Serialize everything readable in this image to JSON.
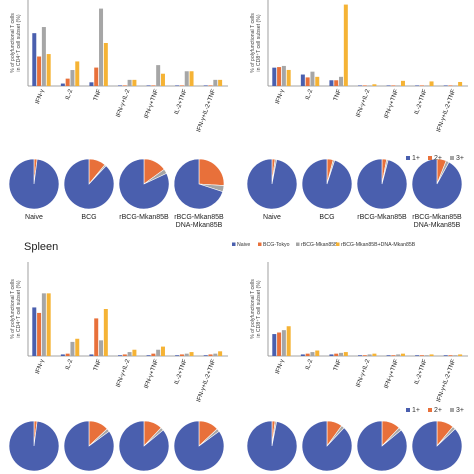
{
  "colors": {
    "naive": "#4a5fae",
    "bcg": "#e8703a",
    "rbcg": "#a6a6a6",
    "combo": "#f5b335",
    "one_plus": "#4a5fae",
    "two_plus": "#e8703a",
    "three_plus": "#a6a6a6"
  },
  "section_label": "Spleen",
  "cd4_ylabel": [
    "% of polyfunctional T cells",
    "in CD4⁺T cell subset (%)"
  ],
  "cd8_ylabel": [
    "% of polyfunctional T cells",
    "in CD8⁺T cell subset (%)"
  ],
  "group_legend": [
    "Naive",
    "BCG-Tokyo",
    "rBCG-Mkan85B",
    "rBCG-Mkan85B+DNA-Mkan85B"
  ],
  "pie_legend": [
    "1+",
    "2+",
    "3+"
  ],
  "pie_labels": [
    "Naive",
    "BCG",
    "rBCG-Mkan85B",
    "rBCG-Mkan85B\nDNA-Mkan85B"
  ],
  "chart_data": [
    {
      "type": "bar",
      "categories": [
        "IFN-γ",
        "IL-2",
        "TNF",
        "IFN-γ+IL-2",
        "IFN-γ+TNF",
        "IL-2+TNF",
        "IFN-γ+IL-2+TNF"
      ],
      "ylabel": "% of polyfunctional T cells in CD4⁺T cell subset (%)",
      "ymax": 7,
      "series": [
        {
          "name": "Naive",
          "values": [
            4.3,
            0.2,
            0.3,
            0.05,
            0.05,
            0.05,
            0.05
          ]
        },
        {
          "name": "BCG-Tokyo",
          "values": [
            2.4,
            0.6,
            1.5,
            0.05,
            0.05,
            0.05,
            0.05
          ]
        },
        {
          "name": "rBCG-Mkan85B",
          "values": [
            4.8,
            1.3,
            6.3,
            0.5,
            1.7,
            1.2,
            0.5
          ]
        },
        {
          "name": "rBCG-Mkan85B+DNA-Mkan85B",
          "values": [
            2.6,
            2.0,
            3.5,
            0.5,
            1.0,
            1.2,
            0.5
          ]
        }
      ]
    },
    {
      "type": "bar",
      "categories": [
        "IFN-γ",
        "IL-2",
        "TNF",
        "IFN-γ+IL-2",
        "IFN-γ+TNF",
        "IL-2+TNF",
        "IFN-γ+IL-2+TNF"
      ],
      "ylabel": "% of polyfunctional T cells in CD8⁺T cell subset (%)",
      "ymax": 1.5,
      "series": [
        {
          "name": "Naive",
          "values": [
            0.32,
            0.2,
            0.1,
            0.0,
            0.0,
            0.0,
            0.0
          ]
        },
        {
          "name": "BCG-Tokyo",
          "values": [
            0.33,
            0.15,
            0.1,
            0.0,
            0.0,
            0.0,
            0.0
          ]
        },
        {
          "name": "rBCG-Mkan85B",
          "values": [
            0.35,
            0.25,
            0.16,
            0.01,
            0.01,
            0.01,
            0.01
          ]
        },
        {
          "name": "rBCG-Mkan85B+DNA-Mkan85B",
          "values": [
            0.28,
            0.16,
            1.42,
            0.03,
            0.09,
            0.08,
            0.07
          ]
        }
      ]
    },
    {
      "type": "pie",
      "labels": [
        "1+",
        "2+",
        "3+"
      ],
      "groups": [
        {
          "name": "Naive",
          "values": [
            98,
            2,
            0
          ]
        },
        {
          "name": "BCG",
          "values": [
            88,
            11,
            1
          ]
        },
        {
          "name": "rBCG-Mkan85B",
          "values": [
            82,
            15,
            3
          ]
        },
        {
          "name": "rBCG-Mkan85B DNA-Mkan85B",
          "values": [
            70,
            26,
            4
          ]
        }
      ]
    },
    {
      "type": "pie",
      "labels": [
        "1+",
        "2+",
        "3+"
      ],
      "groups": [
        {
          "name": "Naive",
          "values": [
            97,
            2,
            1
          ]
        },
        {
          "name": "BCG",
          "values": [
            95,
            4,
            1
          ]
        },
        {
          "name": "rBCG-Mkan85B",
          "values": [
            96,
            3,
            1
          ]
        },
        {
          "name": "rBCG-Mkan85B DNA-Mkan85B",
          "values": [
            92,
            6,
            2
          ]
        }
      ]
    },
    {
      "type": "bar",
      "categories": [
        "IFN-γ",
        "IL-2",
        "TNF",
        "IFN-γ+IL-2",
        "IFN-γ+TNF",
        "IL-2+TNF",
        "IFN-γ+IL-2+TNF"
      ],
      "ylabel": "% of polyfunctional T cells in CD4⁺T cell subset (%)",
      "ymax": 1.2,
      "series": [
        {
          "name": "Naive",
          "values": [
            0.62,
            0.02,
            0.02,
            0.01,
            0.01,
            0.01,
            0.01
          ]
        },
        {
          "name": "BCG-Tokyo",
          "values": [
            0.55,
            0.03,
            0.48,
            0.02,
            0.03,
            0.02,
            0.02
          ]
        },
        {
          "name": "rBCG-Mkan85B",
          "values": [
            0.8,
            0.18,
            0.2,
            0.05,
            0.08,
            0.03,
            0.03
          ]
        },
        {
          "name": "rBCG-Mkan85B+DNA-Mkan85B",
          "values": [
            0.8,
            0.22,
            0.6,
            0.08,
            0.12,
            0.05,
            0.06
          ]
        }
      ]
    },
    {
      "type": "bar",
      "categories": [
        "IFN-γ",
        "IL-2",
        "TNF",
        "IFN-γ+IL-2",
        "IFN-γ+TNF",
        "IL-2+TNF",
        "IFN-γ+IL-2+TNF"
      ],
      "ylabel": "% of polyfunctional T cells in CD8⁺T cell subset (%)",
      "ymax": 1.2,
      "series": [
        {
          "name": "Naive",
          "values": [
            0.28,
            0.02,
            0.02,
            0.01,
            0.01,
            0.01,
            0.01
          ]
        },
        {
          "name": "BCG-Tokyo",
          "values": [
            0.3,
            0.03,
            0.03,
            0.01,
            0.01,
            0.01,
            0.01
          ]
        },
        {
          "name": "rBCG-Mkan85B",
          "values": [
            0.33,
            0.05,
            0.04,
            0.02,
            0.02,
            0.01,
            0.01
          ]
        },
        {
          "name": "rBCG-Mkan85B+DNA-Mkan85B",
          "values": [
            0.38,
            0.07,
            0.05,
            0.03,
            0.03,
            0.02,
            0.02
          ]
        }
      ]
    },
    {
      "type": "pie",
      "labels": [
        "1+",
        "2+",
        "3+"
      ],
      "groups": [
        {
          "name": "Naive",
          "values": [
            98,
            2,
            0
          ]
        },
        {
          "name": "BCG",
          "values": [
            85,
            13,
            2
          ]
        },
        {
          "name": "rBCG-Mkan85B",
          "values": [
            86,
            12,
            2
          ]
        },
        {
          "name": "rBCG-Mkan85B DNA-Mkan85B",
          "values": [
            85,
            13,
            2
          ]
        }
      ]
    },
    {
      "type": "pie",
      "labels": [
        "1+",
        "2+",
        "3+"
      ],
      "groups": [
        {
          "name": "Naive",
          "values": [
            97,
            2,
            1
          ]
        },
        {
          "name": "BCG",
          "values": [
            88,
            10,
            2
          ]
        },
        {
          "name": "rBCG-Mkan85B",
          "values": [
            86,
            12,
            2
          ]
        },
        {
          "name": "rBCG-Mkan85B DNA-Mkan85B",
          "values": [
            87,
            11,
            2
          ]
        }
      ]
    }
  ]
}
